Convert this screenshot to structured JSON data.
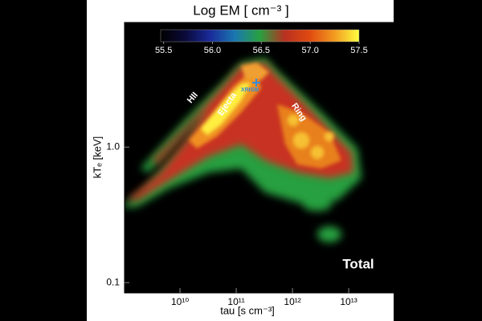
{
  "chart_data": {
    "type": "heatmap",
    "title": "Log EM [ cm⁻³ ]",
    "x_label": "tau [s cm⁻³]",
    "y_label": "kTₑ [keV]",
    "log_x": true,
    "log_y": true,
    "xlim": [
      1030000000,
      63000000000000
    ],
    "xticks": [
      {
        "value": 10000000000,
        "label": "10¹⁰"
      },
      {
        "value": 100000000000,
        "label": "10¹¹"
      },
      {
        "value": 1000000000000,
        "label": "10¹²"
      },
      {
        "value": 10000000000000,
        "label": "10¹³"
      }
    ],
    "ylim": [
      0.084,
      8.3
    ],
    "yticks": [
      0.1,
      {
        "value": 1,
        "label": "1.0"
      }
    ],
    "colorbar": {
      "lim": [
        55.47,
        57.5
      ],
      "ticks": [
        55.5,
        {
          "value": 56,
          "label": "56.0"
        },
        56.5,
        {
          "value": 57,
          "label": "57.0"
        },
        57.5
      ],
      "colormap": [
        "#000000",
        "#0a0a3a",
        "#1a2a9a",
        "#1a78b0",
        "#28a040",
        "#b83020",
        "#e04a10",
        "#f29a20",
        "#ffff40"
      ]
    },
    "annotations": [
      "HII",
      "Ejecta",
      "Ring",
      "XRISM",
      "Total"
    ]
  }
}
